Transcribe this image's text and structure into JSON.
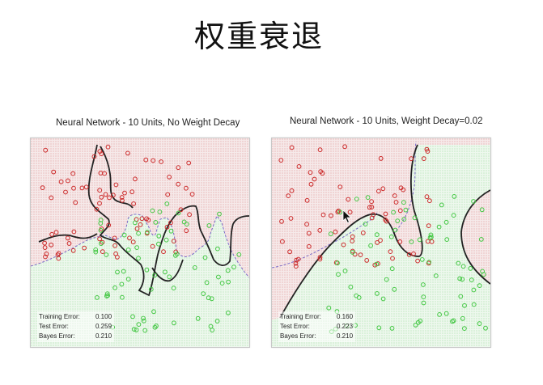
{
  "slide": {
    "title": "权重衰退"
  },
  "colors": {
    "red_region": "#d98080",
    "green_region": "#8fd68f",
    "red_point": "#cc2a2a",
    "green_point": "#43c743",
    "boundary": "#222222",
    "bayes_boundary": "#7a6ac8"
  },
  "panels": [
    {
      "title": "Neural Network - 10 Units, No Weight Decay",
      "stats": [
        {
          "label": "Training Error:",
          "value": "0.100"
        },
        {
          "label": "Test Error:",
          "value": "0.259"
        },
        {
          "label": "Bayes Error:",
          "value": "0.210"
        }
      ]
    },
    {
      "title": "Neural Network - 10 Units, Weight Decay=0.02",
      "stats": [
        {
          "label": "Training Error:",
          "value": "0.160"
        },
        {
          "label": "Test Error:",
          "value": "0.223"
        },
        {
          "label": "Bayes Error:",
          "value": "0.210"
        }
      ]
    }
  ],
  "cursor": {
    "icon": "arrow-cursor-icon"
  }
}
